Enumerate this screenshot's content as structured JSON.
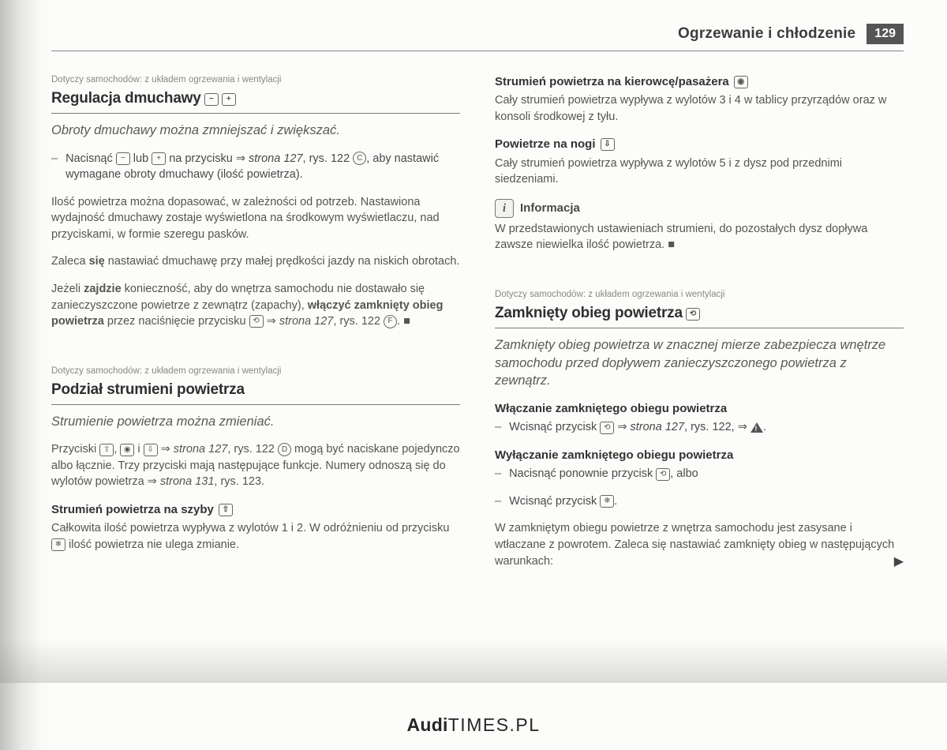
{
  "header": {
    "title": "Ogrzewanie i chłodzenie",
    "page_number": "129"
  },
  "footer": {
    "brand": "Audi",
    "rest": "TIMES.PL"
  },
  "left": {
    "s1": {
      "meta": "Dotyczy samochodów: z układem ogrzewania i wentylacji",
      "title": "Regulacja dmuchawy",
      "lead": "Obroty dmuchawy można zmniejszać i zwiększać.",
      "b1a": "Nacisnąć ",
      "b1b": " lub ",
      "b1c": " na przycisku ⇒ ",
      "b1ref": "strona 127",
      "b1d": ", rys. 122 ",
      "b1e": ", aby nastawić wymagane obroty dmuchawy (ilość powietrza).",
      "p1": "Ilość powietrza można dopasować, w zależności od potrzeb. Nastawiona wydajność dmuchawy zostaje wyświetlona na środkowym wyświetlaczu, nad przyciskami, w formie szeregu pasków.",
      "p2a": "Zaleca ",
      "p2b": "się",
      "p2c": " nastawiać dmuchawę przy małej prędkości jazdy na niskich obrotach.",
      "p3a": "Jeżeli ",
      "p3b": "zajdzie",
      "p3c": " konieczność, aby do wnętrza samochodu nie dostawało się zanieczyszczone powietrze z zewnątrz (zapachy), ",
      "p3d": "włączyć",
      "p3e": " zamknięty obieg powietrza",
      "p3f": " przez naciśnięcie przycisku ",
      "p3g": " ⇒ ",
      "p3ref": "strona 127",
      "p3h": ", rys. 122 ",
      "p3i": ". ■"
    },
    "s2": {
      "meta": "Dotyczy samochodów: z układem ogrzewania i wentylacji",
      "title": "Podział strumieni powietrza",
      "lead": "Strumienie powietrza można zmieniać.",
      "p1a": "Przyciski ",
      "p1b": " i ",
      "p1c": " ⇒ ",
      "p1ref": "strona 127",
      "p1d": ", rys. 122 ",
      "p1e": " mogą być naciskane pojedynczo albo łącznie. Trzy przyciski mają następujące funkcje. Numery odnoszą się do wylotów powietrza ⇒ ",
      "p1ref2": "strona 131",
      "p1f": ", rys. 123.",
      "sub1": "Strumień powietrza na szyby",
      "p2": "Całkowita ilość powietrza wypływa z wylotów 1 i 2. W odróżnieniu od przycisku ",
      "p2b": " ilość powietrza nie ulega zmianie."
    }
  },
  "right": {
    "s1": {
      "sub1": "Strumień powietrza na kierowcę/pasażera",
      "p1": "Cały strumień powietrza wypływa z wylotów 3 i 4 w tablicy przyrządów oraz w konsoli środkowej z tyłu.",
      "sub2": "Powietrze na nogi",
      "p2": "Cały strumień powietrza wypływa z wylotów 5 i z dysz pod przednimi siedzeniami.",
      "info_title": "Informacja",
      "info_text": "W przedstawionych ustawieniach strumieni, do pozostałych dysz dopływa zawsze niewielka ilość powietrza. ■"
    },
    "s2": {
      "meta": "Dotyczy samochodów: z układem ogrzewania i wentylacji",
      "title": "Zamknięty obieg powietrza",
      "lead": "Zamknięty obieg powietrza w znacznej mierze zabezpiecza wnętrze samochodu przed dopływem zanieczyszczonego powietrza z zewnątrz.",
      "sub1": "Włączanie zamkniętego obiegu powietrza",
      "b1a": "Wcisnąć przycisk ",
      "b1b": " ⇒ ",
      "b1ref": "strona 127",
      "b1c": ", rys. 122, ⇒ ",
      "sub2": "Wyłączanie zamkniętego obiegu powietrza",
      "b2a": "Nacisnąć ponownie przycisk ",
      "b2b": ", albo",
      "b3a": "Wcisnąć przycisk ",
      "b3b": ".",
      "p1": "W zamkniętym obiegu powietrze z wnętrza samochodu jest zasysane i wtłaczane z powrotem. Zaleca się nastawiać zamknięty obieg w następujących warunkach:"
    }
  },
  "icons": {
    "minus": "−",
    "plus": "+",
    "C": "C",
    "F": "F",
    "D": "D",
    "up": "⇧",
    "face": "◉",
    "down": "⇩",
    "defrost": "❄",
    "recirc": "⟲",
    "i": "i"
  }
}
